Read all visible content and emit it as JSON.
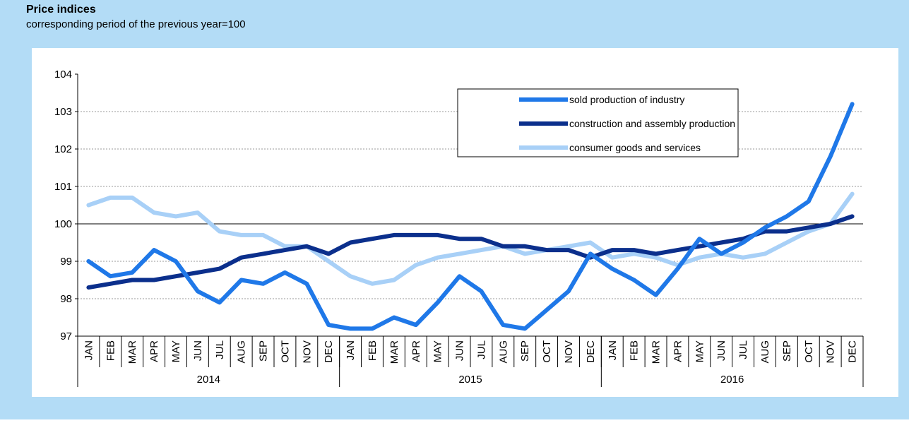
{
  "chart_data": {
    "type": "line",
    "title": "Price indices",
    "subtitle": "corresponding period of the previous year=100",
    "categories": [
      "JAN",
      "FEB",
      "MAR",
      "APR",
      "MAY",
      "JUN",
      "JUL",
      "AUG",
      "SEP",
      "OCT",
      "NOV",
      "DEC",
      "JAN",
      "FEB",
      "MAR",
      "APR",
      "MAY",
      "JUN",
      "JUL",
      "AUG",
      "SEP",
      "OCT",
      "NOV",
      "DEC",
      "JAN",
      "FEB",
      "MAR",
      "APR",
      "MAY",
      "JUN",
      "JUL",
      "AUG",
      "SEP",
      "OCT",
      "NOV",
      "DEC"
    ],
    "year_groups": [
      "2014",
      "2015",
      "2016"
    ],
    "series": [
      {
        "name": "sold production of industry",
        "color": "#1f78e8",
        "values": [
          99.0,
          98.6,
          98.7,
          99.3,
          99.0,
          98.2,
          97.9,
          98.5,
          98.4,
          98.7,
          98.4,
          97.3,
          97.2,
          97.2,
          97.5,
          97.3,
          97.9,
          98.6,
          98.2,
          97.3,
          97.2,
          97.7,
          98.2,
          99.2,
          98.8,
          98.5,
          98.1,
          98.8,
          99.6,
          99.2,
          99.5,
          99.9,
          100.2,
          100.6,
          101.8,
          103.2
        ]
      },
      {
        "name": "construction and assembly production",
        "color": "#0b2f8c",
        "values": [
          98.3,
          98.4,
          98.5,
          98.5,
          98.6,
          98.7,
          98.8,
          99.1,
          99.2,
          99.3,
          99.4,
          99.2,
          99.5,
          99.6,
          99.7,
          99.7,
          99.7,
          99.6,
          99.6,
          99.4,
          99.4,
          99.3,
          99.3,
          99.1,
          99.3,
          99.3,
          99.2,
          99.3,
          99.4,
          99.5,
          99.6,
          99.8,
          99.8,
          99.9,
          100.0,
          100.2
        ]
      },
      {
        "name": "consumer goods and services",
        "color": "#a8d0f7",
        "values": [
          100.5,
          100.7,
          100.7,
          100.3,
          100.2,
          100.3,
          99.8,
          99.7,
          99.7,
          99.4,
          99.4,
          99.0,
          98.6,
          98.4,
          98.5,
          98.9,
          99.1,
          99.2,
          99.3,
          99.4,
          99.2,
          99.3,
          99.4,
          99.5,
          99.1,
          99.2,
          99.1,
          98.9,
          99.1,
          99.2,
          99.1,
          99.2,
          99.5,
          99.8,
          100.0,
          100.8
        ]
      }
    ],
    "ylim": [
      97,
      104
    ],
    "yticks": [
      97,
      98,
      99,
      100,
      101,
      102,
      103,
      104
    ],
    "reference_line": 100,
    "grid": true,
    "legend": "top-right"
  }
}
